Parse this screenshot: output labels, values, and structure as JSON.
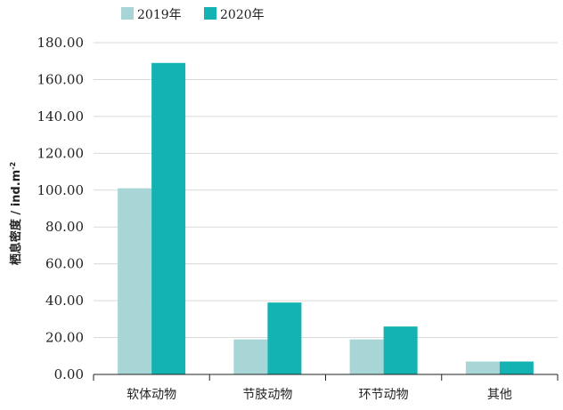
{
  "chart_data": {
    "type": "bar",
    "ylabel": "栖息密度 / ind.m",
    "ylabel_sup": "-2",
    "xlabel": "",
    "ylim": [
      0,
      180
    ],
    "yticks": [
      "0.00",
      "20.00",
      "40.00",
      "60.00",
      "80.00",
      "100.00",
      "120.00",
      "140.00",
      "160.00",
      "180.00"
    ],
    "categories": [
      "软体动物",
      "节肢动物",
      "环节动物",
      "其他"
    ],
    "series": [
      {
        "name": "2019年",
        "color": "#a8d5d6",
        "values": [
          101,
          19,
          19,
          7
        ]
      },
      {
        "name": "2020年",
        "color": "#13b2b3",
        "values": [
          169,
          39,
          26,
          7
        ]
      }
    ],
    "grid": true,
    "legend": "top-left"
  }
}
